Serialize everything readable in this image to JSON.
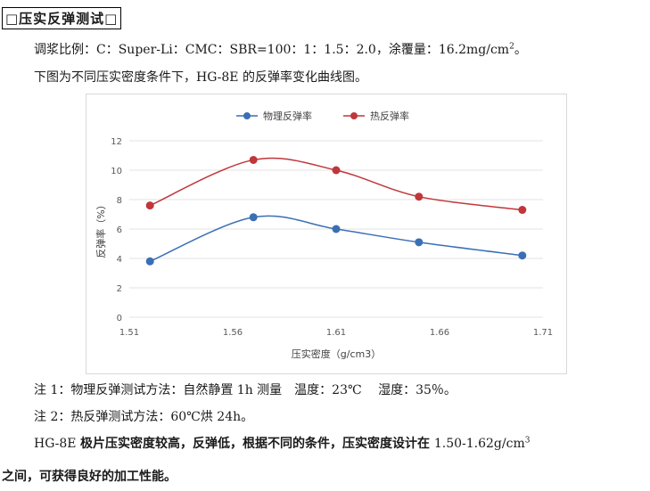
{
  "heading": "□压实反弹测试□",
  "ratio_line": {
    "text": "调浆比例：C：Super-Li：CMC：SBR=100：1：1.5：2.0，涂覆量：16.2mg/cm",
    "sup": "2",
    "tail": "。"
  },
  "caption_line": "下图为不同压实密度条件下，HG-8E 的反弹率变化曲线图。",
  "chart_data": {
    "type": "line",
    "x": [
      1.52,
      1.57,
      1.61,
      1.65,
      1.7
    ],
    "series": [
      {
        "name": "物理反弹率",
        "values": [
          3.8,
          6.8,
          6.0,
          5.1,
          4.2
        ],
        "color": "#3a6fb5"
      },
      {
        "name": "热反弹率",
        "values": [
          7.6,
          10.7,
          10.0,
          8.2,
          7.3
        ],
        "color": "#c0363a"
      }
    ],
    "xlim": [
      1.51,
      1.71
    ],
    "ylim": [
      0,
      12
    ],
    "x_ticks": [
      "1.51",
      "1.56",
      "1.61",
      "1.66",
      "1.71"
    ],
    "y_ticks": [
      "0",
      "2",
      "4",
      "6",
      "8",
      "10",
      "12"
    ],
    "xlabel": "压实密度（g/cm3）",
    "ylabel": "反弹率（%）",
    "legend_position": "top",
    "grid": true
  },
  "note1": "注 1：物理反弹测试方法：自然静置 1h 测量　温度：23℃　 湿度：35％。",
  "note2": "注 2：热反弹测试方法：60℃烘 24h。",
  "conclusion": {
    "part1": "HG-8E ",
    "part2": "极片压实密度较高，反弹低，根据不同的条件，压实密度设计在 ",
    "part3": "1.50-1.62g/cm",
    "sup": "3",
    "line2": "之间，可获得良好的加工性能。"
  }
}
